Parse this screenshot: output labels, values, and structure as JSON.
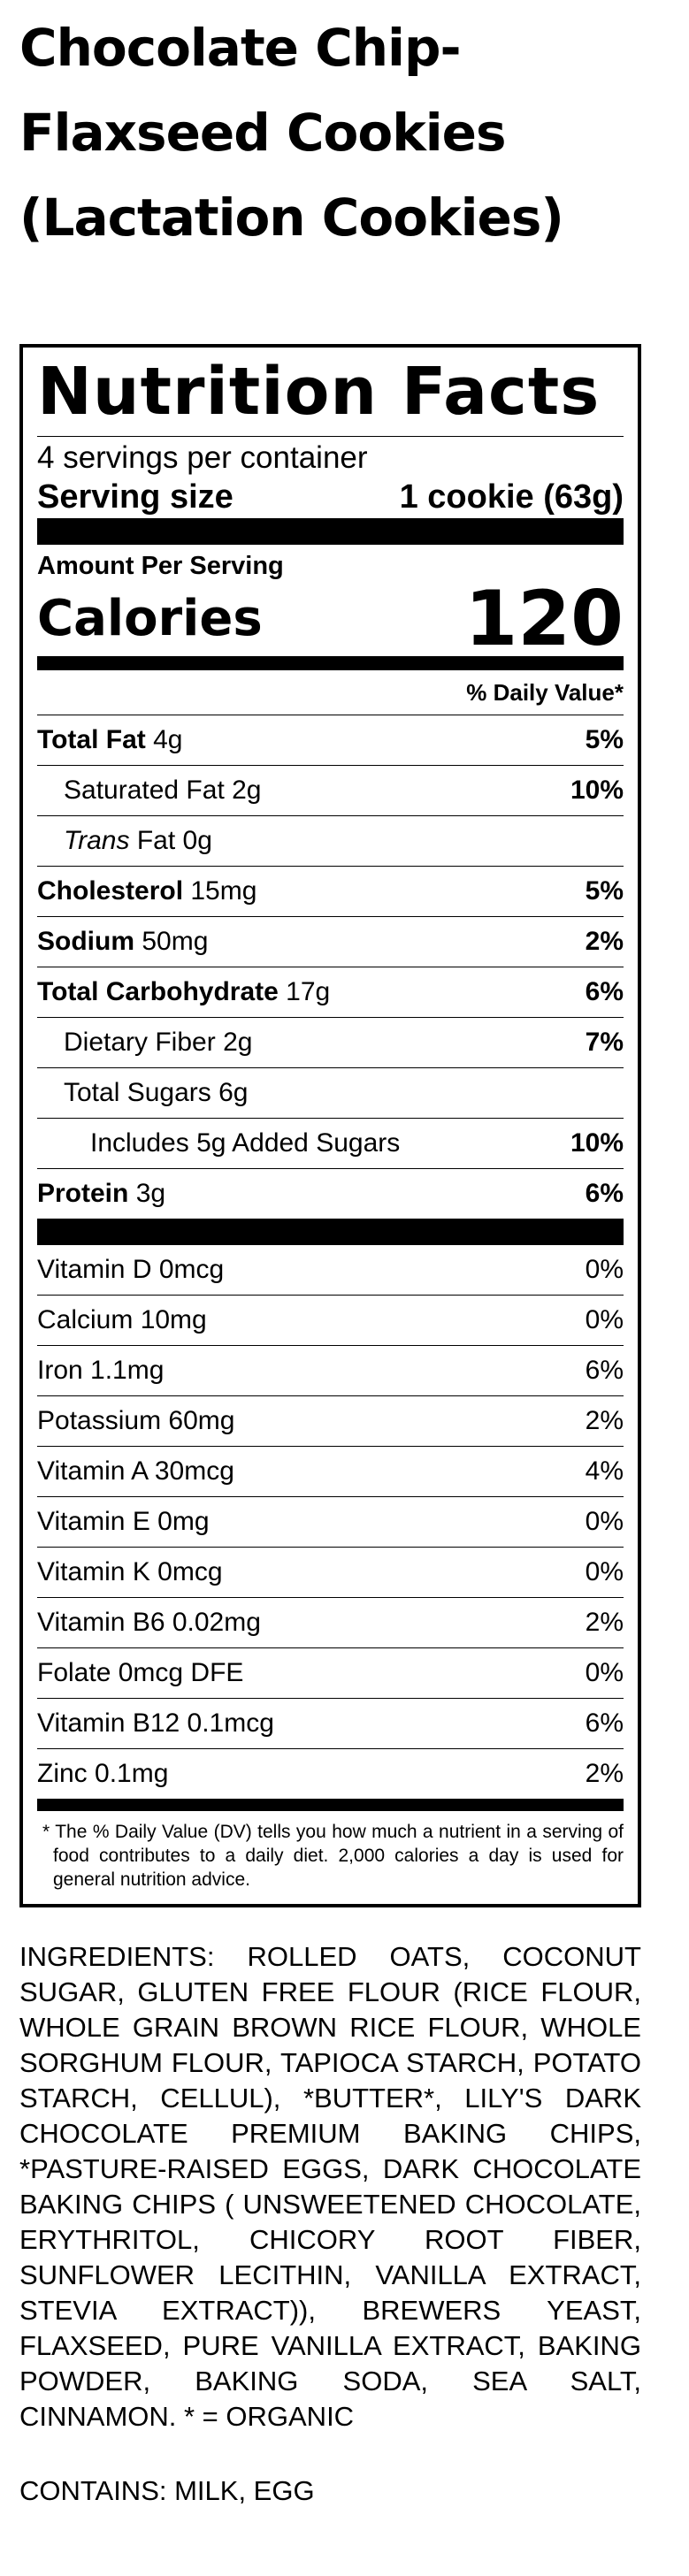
{
  "recipe": {
    "title_lines": [
      "Chocolate Chip-",
      "Flaxseed Cookies",
      "(Lactation Cookies)"
    ]
  },
  "nutrition": {
    "heading": "Nutrition Facts",
    "servings_per_container": "4 servings per container",
    "serving_size_label": "Serving size",
    "serving_size_value": "1 cookie (63g)",
    "amount_per_serving": "Amount Per Serving",
    "calories_label": "Calories",
    "calories_value": "120",
    "dv_header": "% Daily Value*",
    "nutrients": [
      {
        "label": "Total Fat",
        "amount": "4g",
        "dv": "5%"
      },
      {
        "label": "Saturated Fat",
        "amount": "2g",
        "dv": "10%"
      },
      {
        "label": "Trans",
        "label_suffix": "Fat",
        "amount": "0g",
        "dv": ""
      },
      {
        "label": "Cholesterol",
        "amount": "15mg",
        "dv": "5%"
      },
      {
        "label": "Sodium",
        "amount": "50mg",
        "dv": "2%"
      },
      {
        "label": "Total Carbohydrate",
        "amount": "17g",
        "dv": "6%"
      },
      {
        "label": "Dietary Fiber",
        "amount": "2g",
        "dv": "7%"
      },
      {
        "label": "Total Sugars",
        "amount": "6g",
        "dv": ""
      },
      {
        "label": "Includes 5g Added Sugars",
        "amount": "",
        "dv": "10%"
      },
      {
        "label": "Protein",
        "amount": "3g",
        "dv": "6%"
      }
    ],
    "vitamins": [
      {
        "label": "Vitamin D 0mcg",
        "dv": "0%"
      },
      {
        "label": "Calcium 10mg",
        "dv": "0%"
      },
      {
        "label": "Iron 1.1mg",
        "dv": "6%"
      },
      {
        "label": "Potassium 60mg",
        "dv": "2%"
      },
      {
        "label": "Vitamin A 30mcg",
        "dv": "4%"
      },
      {
        "label": "Vitamin E 0mg",
        "dv": "0%"
      },
      {
        "label": "Vitamin K 0mcg",
        "dv": "0%"
      },
      {
        "label": "Vitamin B6 0.02mg",
        "dv": "2%"
      },
      {
        "label": "Folate 0mcg DFE",
        "dv": "0%"
      },
      {
        "label": "Vitamin B12 0.1mcg",
        "dv": "6%"
      },
      {
        "label": "Zinc 0.1mg",
        "dv": "2%"
      }
    ],
    "footnote": "* The % Daily Value (DV) tells you how much a nutrient in a serving of food contributes to a daily diet. 2,000 calories a day is used for general nutrition advice."
  },
  "ingredients": "INGREDIENTS: ROLLED OATS, COCONUT SUGAR, GLUTEN FREE FLOUR (RICE FLOUR, WHOLE GRAIN BROWN RICE FLOUR, WHOLE SORGHUM FLOUR, TAPIOCA STARCH, POTATO STARCH, CELLUL), *BUTTER*, LILY'S DARK CHOCOLATE PREMIUM BAKING CHIPS, *PASTURE-RAISED EGGS, DARK CHOCOLATE BAKING CHIPS ( UNSWEETENED CHOCOLATE, ERYTHRITOL, CHICORY ROOT FIBER, SUNFLOWER LECITHIN, VANILLA EXTRACT, STEVIA EXTRACT)), BREWERS YEAST, FLAXSEED, PURE VANILLA EXTRACT, BAKING POWDER, BAKING SODA, SEA SALT, CINNAMON. * = ORGANIC",
  "contains": "CONTAINS: MILK, EGG"
}
